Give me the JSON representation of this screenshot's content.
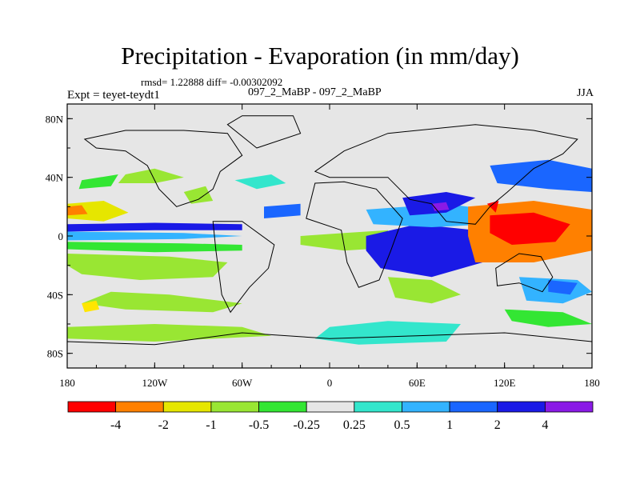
{
  "chart_data": {
    "type": "heatmap",
    "title": "Precipitation - Evaporation (in mm/day)",
    "stats_text": "rmsd= 1.22888 diff= -0.00302092",
    "left_label": "Expt = teyet-teydt1",
    "center_label": "097_2_MaBP - 097_2_MaBP",
    "right_label": "JJA",
    "x_ticks": [
      "180",
      "120W",
      "60W",
      "0",
      "60E",
      "120E",
      "180"
    ],
    "y_ticks": [
      "80N",
      "40N",
      "0",
      "40S",
      "80S"
    ],
    "xlim": [
      -180,
      180
    ],
    "ylim": [
      -90,
      90
    ],
    "colorbar": {
      "labels": [
        "-4",
        "-2",
        "-1",
        "-0.5",
        "-0.25",
        "0.25",
        "0.5",
        "1",
        "2",
        "4"
      ],
      "colors": [
        "#ff0000",
        "#ff8000",
        "#e6e600",
        "#99e633",
        "#33e633",
        "#e6e6e6",
        "#33e6cc",
        "#33b3ff",
        "#1a66ff",
        "#1a1ae6",
        "#8a1ae6"
      ]
    },
    "regions": [
      {
        "color": "#e6e600",
        "pts": [
          [
            -180,
            22
          ],
          [
            -155,
            24
          ],
          [
            -138,
            16
          ],
          [
            -155,
            10
          ],
          [
            -180,
            12
          ]
        ]
      },
      {
        "color": "#ff8000",
        "pts": [
          [
            -180,
            20
          ],
          [
            -170,
            21
          ],
          [
            -166,
            15
          ],
          [
            -180,
            14
          ]
        ]
      },
      {
        "color": "#1a1ae6",
        "pts": [
          [
            -180,
            8
          ],
          [
            -120,
            9
          ],
          [
            -60,
            8
          ],
          [
            -60,
            4
          ],
          [
            -120,
            4
          ],
          [
            -180,
            3
          ]
        ]
      },
      {
        "color": "#33b3ff",
        "pts": [
          [
            -180,
            3
          ],
          [
            -100,
            2
          ],
          [
            -60,
            0
          ],
          [
            -100,
            -2
          ],
          [
            -180,
            -3
          ]
        ]
      },
      {
        "color": "#33e633",
        "pts": [
          [
            -180,
            -4
          ],
          [
            -100,
            -5
          ],
          [
            -60,
            -6
          ],
          [
            -60,
            -10
          ],
          [
            -120,
            -11
          ],
          [
            -180,
            -9
          ]
        ]
      },
      {
        "color": "#99e633",
        "pts": [
          [
            -180,
            -12
          ],
          [
            -110,
            -14
          ],
          [
            -70,
            -18
          ],
          [
            -80,
            -28
          ],
          [
            -130,
            -30
          ],
          [
            -170,
            -26
          ],
          [
            -180,
            -20
          ]
        ]
      },
      {
        "color": "#99e633",
        "pts": [
          [
            -150,
            -38
          ],
          [
            -110,
            -40
          ],
          [
            -60,
            -46
          ],
          [
            -80,
            -52
          ],
          [
            -140,
            -50
          ],
          [
            -170,
            -46
          ]
        ]
      },
      {
        "color": "#99e633",
        "pts": [
          [
            -140,
            42
          ],
          [
            -120,
            46
          ],
          [
            -100,
            40
          ],
          [
            -120,
            36
          ],
          [
            -145,
            36
          ]
        ]
      },
      {
        "color": "#33e633",
        "pts": [
          [
            -170,
            38
          ],
          [
            -145,
            42
          ],
          [
            -150,
            34
          ],
          [
            -172,
            32
          ]
        ]
      },
      {
        "color": "#99e633",
        "pts": [
          [
            -180,
            -62
          ],
          [
            -120,
            -60
          ],
          [
            -60,
            -62
          ],
          [
            -40,
            -68
          ],
          [
            -120,
            -72
          ],
          [
            -180,
            -70
          ]
        ]
      },
      {
        "color": "#ffe600",
        "pts": [
          [
            -170,
            -46
          ],
          [
            -160,
            -44
          ],
          [
            -158,
            -50
          ],
          [
            -168,
            -52
          ]
        ]
      },
      {
        "color": "#99e633",
        "pts": [
          [
            -20,
            0
          ],
          [
            10,
            2
          ],
          [
            40,
            4
          ],
          [
            40,
            -8
          ],
          [
            10,
            -10
          ],
          [
            -20,
            -6
          ]
        ]
      },
      {
        "color": "#1a66ff",
        "pts": [
          [
            -45,
            20
          ],
          [
            -20,
            22
          ],
          [
            -20,
            14
          ],
          [
            -45,
            12
          ]
        ]
      },
      {
        "color": "#33e6cc",
        "pts": [
          [
            -65,
            38
          ],
          [
            -40,
            42
          ],
          [
            -30,
            36
          ],
          [
            -50,
            32
          ]
        ]
      },
      {
        "color": "#33e6cc",
        "pts": [
          [
            0,
            -62
          ],
          [
            40,
            -58
          ],
          [
            90,
            -60
          ],
          [
            80,
            -72
          ],
          [
            20,
            -74
          ],
          [
            -10,
            -70
          ]
        ]
      },
      {
        "color": "#99e633",
        "pts": [
          [
            40,
            -28
          ],
          [
            70,
            -30
          ],
          [
            90,
            -40
          ],
          [
            70,
            -46
          ],
          [
            45,
            -42
          ]
        ]
      },
      {
        "color": "#8a1ae6",
        "pts": [
          [
            30,
            -4
          ],
          [
            60,
            -2
          ],
          [
            95,
            -6
          ],
          [
            100,
            -16
          ],
          [
            70,
            -22
          ],
          [
            40,
            -18
          ]
        ]
      },
      {
        "color": "#1a1ae6",
        "pts": [
          [
            25,
            0
          ],
          [
            60,
            8
          ],
          [
            100,
            4
          ],
          [
            105,
            -18
          ],
          [
            70,
            -28
          ],
          [
            35,
            -22
          ],
          [
            25,
            -10
          ]
        ]
      },
      {
        "color": "#33b3ff",
        "pts": [
          [
            25,
            18
          ],
          [
            80,
            22
          ],
          [
            110,
            18
          ],
          [
            110,
            8
          ],
          [
            70,
            6
          ],
          [
            30,
            8
          ]
        ]
      },
      {
        "color": "#1a1ae6",
        "pts": [
          [
            50,
            26
          ],
          [
            80,
            30
          ],
          [
            100,
            26
          ],
          [
            80,
            16
          ],
          [
            55,
            14
          ]
        ]
      },
      {
        "color": "#8a1ae6",
        "pts": [
          [
            70,
            22
          ],
          [
            80,
            23
          ],
          [
            82,
            18
          ],
          [
            72,
            17
          ]
        ]
      },
      {
        "color": "#ff8000",
        "pts": [
          [
            95,
            20
          ],
          [
            140,
            24
          ],
          [
            180,
            18
          ],
          [
            180,
            -10
          ],
          [
            140,
            -18
          ],
          [
            100,
            -18
          ],
          [
            95,
            0
          ]
        ]
      },
      {
        "color": "#ff0000",
        "pts": [
          [
            110,
            14
          ],
          [
            140,
            16
          ],
          [
            165,
            8
          ],
          [
            155,
            -4
          ],
          [
            125,
            -6
          ],
          [
            110,
            2
          ]
        ]
      },
      {
        "color": "#ff0000",
        "pts": [
          [
            108,
            22
          ],
          [
            116,
            24
          ],
          [
            114,
            16
          ]
        ]
      },
      {
        "color": "#1a66ff",
        "pts": [
          [
            110,
            48
          ],
          [
            150,
            52
          ],
          [
            180,
            46
          ],
          [
            180,
            30
          ],
          [
            150,
            32
          ],
          [
            115,
            36
          ]
        ]
      },
      {
        "color": "#33b3ff",
        "pts": [
          [
            130,
            -28
          ],
          [
            170,
            -30
          ],
          [
            180,
            -38
          ],
          [
            160,
            -46
          ],
          [
            135,
            -44
          ]
        ]
      },
      {
        "color": "#1a66ff",
        "pts": [
          [
            150,
            -30
          ],
          [
            170,
            -32
          ],
          [
            165,
            -40
          ],
          [
            150,
            -38
          ]
        ]
      },
      {
        "color": "#33e633",
        "pts": [
          [
            120,
            -50
          ],
          [
            160,
            -52
          ],
          [
            180,
            -60
          ],
          [
            150,
            -62
          ],
          [
            125,
            -58
          ]
        ]
      },
      {
        "color": "#99e633",
        "pts": [
          [
            -100,
            30
          ],
          [
            -85,
            34
          ],
          [
            -80,
            24
          ],
          [
            -95,
            22
          ]
        ]
      }
    ],
    "land_outline": [
      [
        [
          -168,
          66
        ],
        [
          -140,
          72
        ],
        [
          -100,
          72
        ],
        [
          -70,
          70
        ],
        [
          -60,
          55
        ],
        [
          -75,
          44
        ],
        [
          -80,
          32
        ],
        [
          -90,
          25
        ],
        [
          -105,
          20
        ],
        [
          -117,
          32
        ],
        [
          -125,
          48
        ],
        [
          -140,
          58
        ],
        [
          -160,
          60
        ]
      ],
      [
        [
          -80,
          10
        ],
        [
          -60,
          10
        ],
        [
          -38,
          -6
        ],
        [
          -42,
          -22
        ],
        [
          -55,
          -35
        ],
        [
          -68,
          -52
        ],
        [
          -74,
          -40
        ],
        [
          -78,
          -10
        ]
      ],
      [
        [
          -10,
          36
        ],
        [
          10,
          37
        ],
        [
          32,
          32
        ],
        [
          50,
          12
        ],
        [
          42,
          -10
        ],
        [
          34,
          -30
        ],
        [
          20,
          -35
        ],
        [
          12,
          -18
        ],
        [
          8,
          4
        ],
        [
          -16,
          12
        ]
      ],
      [
        [
          -10,
          44
        ],
        [
          10,
          58
        ],
        [
          40,
          70
        ],
        [
          100,
          76
        ],
        [
          140,
          72
        ],
        [
          170,
          66
        ],
        [
          160,
          56
        ],
        [
          140,
          46
        ],
        [
          122,
          30
        ],
        [
          110,
          20
        ],
        [
          100,
          8
        ],
        [
          80,
          10
        ],
        [
          70,
          22
        ],
        [
          55,
          25
        ],
        [
          40,
          40
        ],
        [
          20,
          40
        ],
        [
          0,
          40
        ]
      ],
      [
        [
          114,
          -22
        ],
        [
          130,
          -12
        ],
        [
          145,
          -14
        ],
        [
          153,
          -28
        ],
        [
          146,
          -38
        ],
        [
          130,
          -32
        ],
        [
          115,
          -34
        ]
      ],
      [
        [
          -50,
          60
        ],
        [
          -20,
          70
        ],
        [
          -25,
          82
        ],
        [
          -60,
          82
        ],
        [
          -70,
          76
        ]
      ],
      [
        [
          -180,
          -72
        ],
        [
          -120,
          -74
        ],
        [
          -60,
          -66
        ],
        [
          0,
          -70
        ],
        [
          60,
          -68
        ],
        [
          120,
          -66
        ],
        [
          180,
          -72
        ],
        [
          180,
          -90
        ],
        [
          -180,
          -90
        ]
      ]
    ]
  }
}
